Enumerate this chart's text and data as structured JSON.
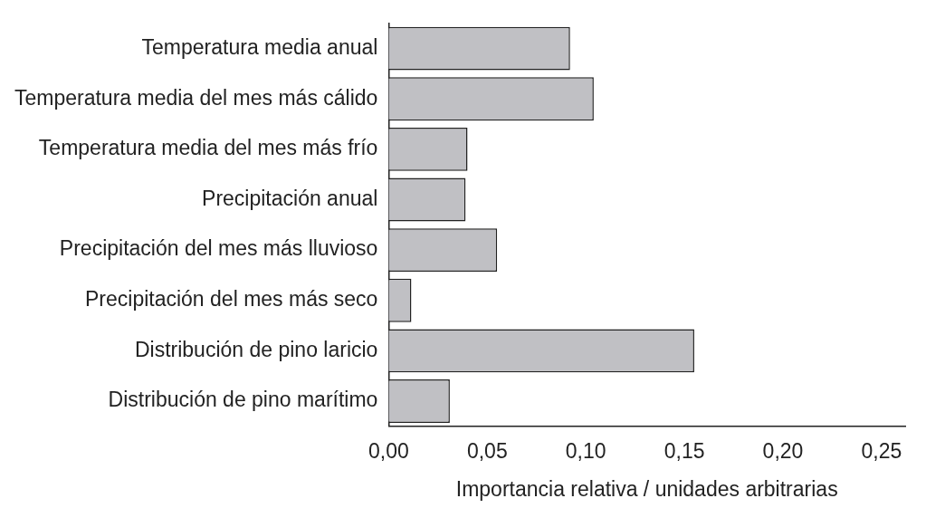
{
  "chart_data": {
    "type": "bar",
    "orientation": "horizontal",
    "xlabel": "Importancia relativa / unidades arbitrarias",
    "categories": [
      "Temperatura media anual",
      "Temperatura media del mes más cálido",
      "Temperatura media del mes más frío",
      "Precipitación anual",
      "Precipitación del mes más lluvioso",
      "Precipitación del mes más seco",
      "Distribución de pino laricio",
      "Distribución de pino marítimo"
    ],
    "values": [
      0.092,
      0.104,
      0.04,
      0.039,
      0.055,
      0.0115,
      0.155,
      0.031
    ],
    "color": "#c0c0c4",
    "xlim": [
      0,
      0.262
    ],
    "xticks": [
      {
        "value": 0,
        "label": "0,00"
      },
      {
        "value": 0.05,
        "label": "0,05"
      },
      {
        "value": 0.1,
        "label": "0,10"
      },
      {
        "value": 0.15,
        "label": "0,15"
      },
      {
        "value": 0.2,
        "label": "0,20"
      },
      {
        "value": 0.25,
        "label": "0,25"
      }
    ],
    "grid": false,
    "legend": false
  }
}
